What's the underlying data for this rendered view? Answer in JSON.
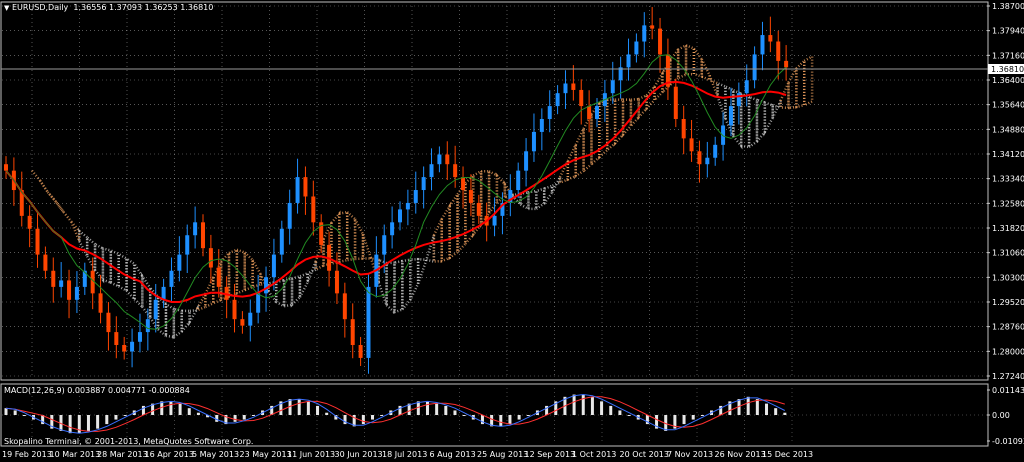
{
  "header": {
    "symbol": "EURUSD,Daily",
    "ohlc": "1.36556 1.37093 1.36253 1.36810",
    "arrow_icon": "triangle-down-icon"
  },
  "indicator": {
    "label": "MACD(12,26,9) 0.003887 0.004771 -0.000884"
  },
  "footer": {
    "copyright": "Skopalino Terminal, © 2001-2013, MetaQuotes Software Corp."
  },
  "colors": {
    "background": "#000000",
    "grid": "#ffffff",
    "bull_candle": "#1e90ff",
    "bear_candle": "#ff4500",
    "ma_long": "#ff0000",
    "ma_short": "#228b22",
    "cloud": "#f4a460",
    "cloud_alt": "#d3d3d3",
    "price_marker_bg": "#ffffff",
    "price_marker_text": "#000000"
  },
  "chart_data": [
    {
      "type": "candlestick",
      "title": "EURUSD,Daily",
      "ylim": [
        1.2724,
        1.387
      ],
      "y_ticks": [
        "1.38700",
        "1.37940",
        "1.37160",
        "1.36400",
        "1.35640",
        "1.34880",
        "1.34120",
        "1.33340",
        "1.32580",
        "1.31820",
        "1.31060",
        "1.30300",
        "1.29520",
        "1.28760",
        "1.28000",
        "1.27240"
      ],
      "current_price": "1.36810",
      "x_labels": [
        "19 Feb 2013",
        "10 Mar 2013",
        "28 Mar 2013",
        "16 Apr 2013",
        "5 May 2013",
        "23 May 2013",
        "11 Jun 2013",
        "30 Jun 2013",
        "18 Jul 2013",
        "6 Aug 2013",
        "25 Aug 2013",
        "12 Sep 2013",
        "1 Oct 2013",
        "20 Oct 2013",
        "7 Nov 2013",
        "26 Nov 2013",
        "15 Dec 2013"
      ],
      "close_approx": [
        1.336,
        1.33,
        1.322,
        1.318,
        1.31,
        1.305,
        1.3,
        1.302,
        1.296,
        1.3,
        1.305,
        1.298,
        1.292,
        1.286,
        1.282,
        1.28,
        1.283,
        1.286,
        1.29,
        1.296,
        1.3,
        1.305,
        1.31,
        1.316,
        1.32,
        1.312,
        1.306,
        1.3,
        1.296,
        1.29,
        1.288,
        1.292,
        1.298,
        1.303,
        1.31,
        1.318,
        1.326,
        1.334,
        1.328,
        1.32,
        1.313,
        1.305,
        1.298,
        1.29,
        1.282,
        1.278,
        1.3,
        1.31,
        1.316,
        1.32,
        1.324,
        1.326,
        1.33,
        1.334,
        1.338,
        1.341,
        1.338,
        1.334,
        1.33,
        1.326,
        1.322,
        1.319,
        1.322,
        1.326,
        1.33,
        1.336,
        1.342,
        1.348,
        1.352,
        1.356,
        1.36,
        1.363,
        1.361,
        1.356,
        1.352,
        1.356,
        1.36,
        1.364,
        1.368,
        1.372,
        1.376,
        1.381,
        1.38,
        1.372,
        1.362,
        1.352,
        1.346,
        1.342,
        1.338,
        1.34,
        1.344,
        1.35,
        1.356,
        1.36,
        1.364,
        1.372,
        1.378,
        1.376,
        1.37,
        1.368
      ]
    },
    {
      "type": "histogram",
      "title": "MACD(12,26,9)",
      "y_ticks": [
        "0.011434",
        "0.00",
        "-0.010937"
      ],
      "values": [
        0.003,
        0.002,
        0.0,
        -0.002,
        -0.004,
        -0.006,
        -0.007,
        -0.008,
        -0.008,
        -0.007,
        -0.006,
        -0.004,
        -0.002,
        0.0,
        0.002,
        0.004,
        0.005,
        0.006,
        0.006,
        0.005,
        0.003,
        0.001,
        -0.001,
        -0.003,
        -0.004,
        -0.003,
        -0.002,
        0.0,
        0.002,
        0.004,
        0.006,
        0.007,
        0.007,
        0.006,
        0.004,
        0.001,
        -0.002,
        -0.004,
        -0.005,
        -0.004,
        -0.002,
        0.0,
        0.002,
        0.004,
        0.005,
        0.006,
        0.006,
        0.005,
        0.004,
        0.002,
        0.0,
        -0.002,
        -0.004,
        -0.005,
        -0.005,
        -0.004,
        -0.002,
        0.0,
        0.002,
        0.004,
        0.006,
        0.008,
        0.009,
        0.009,
        0.008,
        0.006,
        0.004,
        0.002,
        0.0,
        -0.002,
        -0.004,
        -0.006,
        -0.007,
        -0.006,
        -0.004,
        -0.002,
        0.0,
        0.002,
        0.004,
        0.006,
        0.007,
        0.008,
        0.007,
        0.005,
        0.003,
        0.001
      ]
    }
  ]
}
